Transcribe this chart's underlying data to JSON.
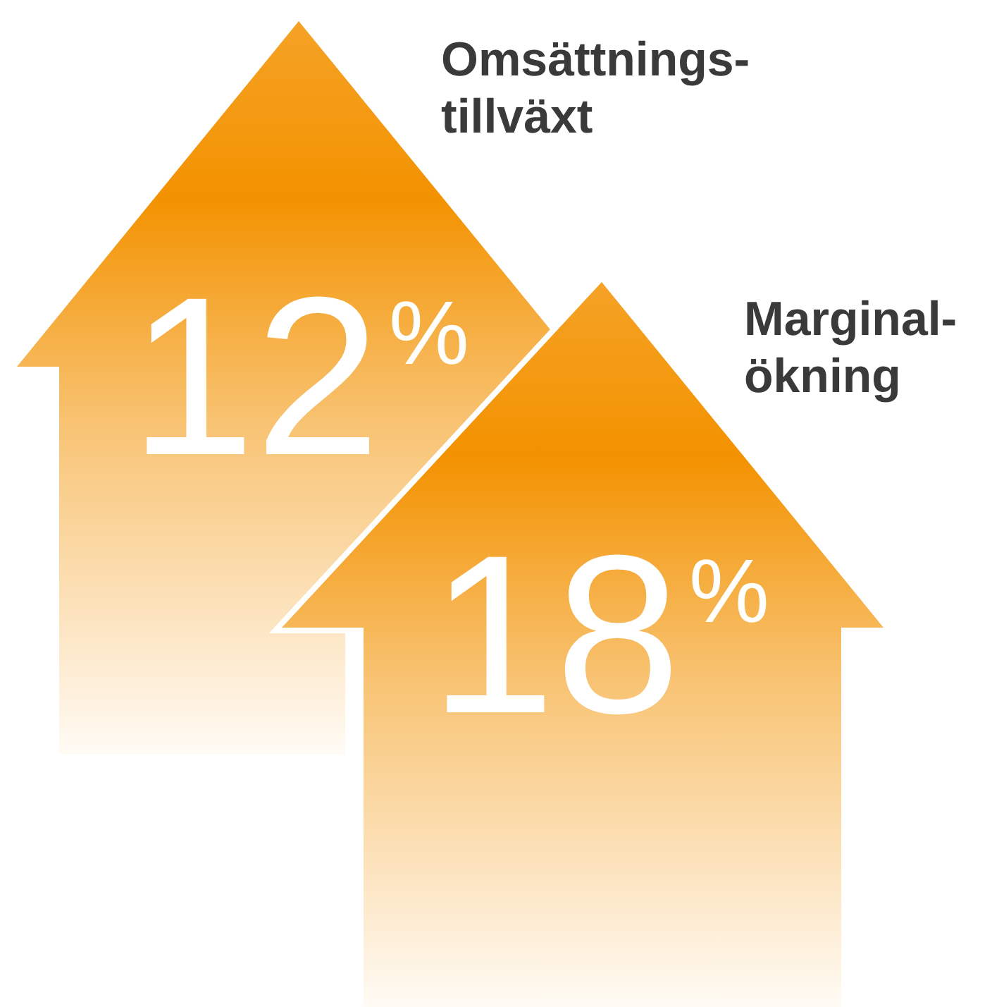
{
  "chart_data": {
    "type": "other",
    "categories": [
      "Omsättnings-\ntillväxt",
      "Marginal-\nökning"
    ],
    "values": [
      12,
      18
    ],
    "value_labels": [
      "12%",
      "18%"
    ],
    "color": "#f39200"
  }
}
